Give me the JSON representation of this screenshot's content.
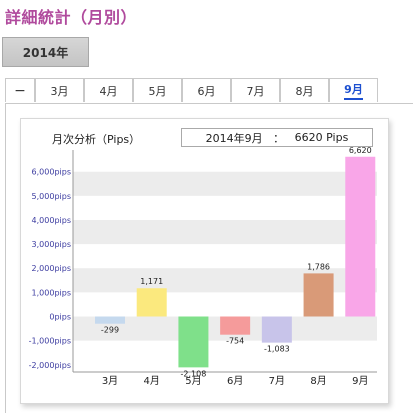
{
  "page": {
    "title": "詳細統計（月別）"
  },
  "year_button": {
    "label": "2014年"
  },
  "tabs": [
    {
      "label": "−"
    },
    {
      "label": "3月"
    },
    {
      "label": "4月"
    },
    {
      "label": "5月"
    },
    {
      "label": "6月"
    },
    {
      "label": "7月"
    },
    {
      "label": "8月"
    },
    {
      "label": "9月",
      "active": true
    }
  ],
  "chart_panel": {
    "title": "月次分析（Pips）",
    "summary": {
      "month": "2014年9月",
      "separator": "：",
      "value": "6620 Pips"
    }
  },
  "chart_data": {
    "type": "bar",
    "title": "月次分析（Pips）",
    "categories": [
      "3月",
      "4月",
      "5月",
      "6月",
      "7月",
      "8月",
      "9月"
    ],
    "values": [
      -299,
      1171,
      -2108,
      -754,
      -1083,
      1786,
      6620
    ],
    "value_labels": [
      "-299",
      "1,171",
      "-2,108",
      "-754",
      "-1,083",
      "1,786",
      "6,620"
    ],
    "bar_colors": [
      "#c5d9ee",
      "#fbe97e",
      "#7fe08a",
      "#f59b9b",
      "#c8c4ea",
      "#d99a78",
      "#f9a6e8"
    ],
    "y_ticks": [
      -2000,
      -1000,
      0,
      1000,
      2000,
      3000,
      4000,
      5000,
      6000
    ],
    "y_tick_labels": [
      "-2,000pips",
      "-1,000pips",
      "0pips",
      "1,000pips",
      "2,000pips",
      "3,000pips",
      "4,000pips",
      "5,000pips",
      "6,000pips"
    ],
    "ylim": [
      -2300,
      6900
    ],
    "xlabel": "",
    "ylabel": "",
    "grid": "alternating horizontal bands",
    "band_color": "#ececec",
    "tick_label_color": "#3c3ca0"
  }
}
